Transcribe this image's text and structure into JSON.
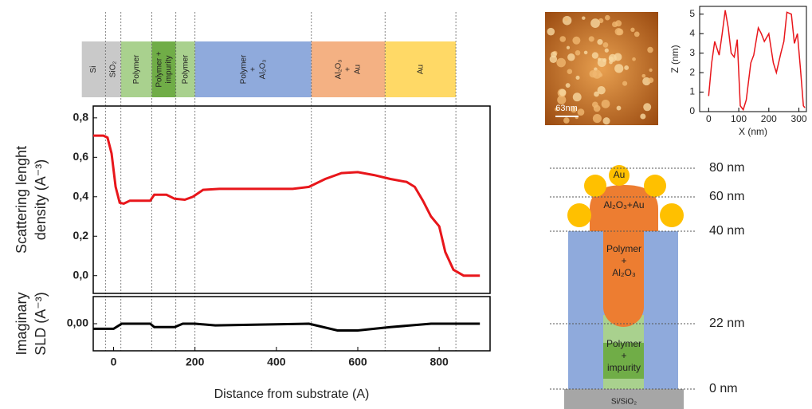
{
  "chart_data": [
    {
      "type": "line",
      "xlim": [
        -50,
        925
      ],
      "ylim": [
        -0.09,
        0.86
      ],
      "yticks": [
        {
          "value": 0,
          "label": "0,0"
        },
        {
          "value": 0.2,
          "label": "0,2"
        },
        {
          "value": 0.4,
          "label": "0,4"
        },
        {
          "value": 0.6,
          "label": "0,6"
        },
        {
          "value": 0.8,
          "label": "0,8"
        }
      ],
      "ylabel": [
        "Scattering lenght",
        "density  (A⁻³)"
      ],
      "layers": [
        {
          "lines": [
            "Si"
          ],
          "from": -78,
          "to": -20,
          "color": "#c9c9c9"
        },
        {
          "lines": [
            "SiO₂"
          ],
          "from": -20,
          "to": 18,
          "color": "#c9c9c9"
        },
        {
          "lines": [
            "Polymer"
          ],
          "from": 18,
          "to": 94,
          "color": "#a9d18e"
        },
        {
          "lines": [
            "Polymer +",
            "impurity"
          ],
          "from": 94,
          "to": 153,
          "color": "#70ad47"
        },
        {
          "lines": [
            "Polymer"
          ],
          "from": 153,
          "to": 200,
          "color": "#a9d18e"
        },
        {
          "lines": [
            "Polymer",
            "+",
            "Al₂O₃"
          ],
          "from": 200,
          "to": 486,
          "color": "#8faadc"
        },
        {
          "lines": [
            "Al₂O₃",
            "+",
            "Au"
          ],
          "from": 486,
          "to": 667,
          "color": "#f4b183"
        },
        {
          "lines": [
            "Au"
          ],
          "from": 667,
          "to": 841,
          "color": "#ffd966"
        }
      ],
      "series": [
        {
          "color": "#e8161b",
          "x": [
            -50,
            -25,
            -15,
            -5,
            5,
            15,
            25,
            40,
            90,
            100,
            130,
            150,
            175,
            195,
            220,
            260,
            350,
            440,
            480,
            520,
            560,
            600,
            640,
            680,
            720,
            740,
            760,
            780,
            800,
            815,
            835,
            860,
            900
          ],
          "values": [
            0.71,
            0.71,
            0.7,
            0.62,
            0.45,
            0.37,
            0.365,
            0.38,
            0.38,
            0.41,
            0.41,
            0.39,
            0.385,
            0.4,
            0.435,
            0.44,
            0.44,
            0.44,
            0.45,
            0.49,
            0.52,
            0.525,
            0.51,
            0.49,
            0.475,
            0.45,
            0.38,
            0.3,
            0.25,
            0.12,
            0.03,
            0.0,
            0.0
          ]
        }
      ]
    },
    {
      "type": "line",
      "xlim": [
        -50,
        925
      ],
      "ylim": [
        -0.08,
        0.08
      ],
      "xticks": [
        0,
        200,
        400,
        600,
        800
      ],
      "yticks": [
        {
          "value": 0,
          "label": "0,00"
        }
      ],
      "xlabel": "Distance from substrate (A)",
      "ylabel": [
        "Imaginary",
        "SLD  (A⁻³)"
      ],
      "series": [
        {
          "color": "#000000",
          "x": [
            -50,
            0,
            20,
            90,
            100,
            150,
            170,
            200,
            250,
            480,
            550,
            600,
            680,
            780,
            820,
            900
          ],
          "values": [
            -0.015,
            -0.015,
            0,
            0,
            -0.01,
            -0.01,
            0,
            0,
            -0.005,
            0,
            -0.02,
            -0.02,
            -0.01,
            0,
            0,
            0
          ]
        }
      ]
    },
    {
      "type": "line",
      "xlim": [
        -30,
        325
      ],
      "ylim": [
        0,
        5.4
      ],
      "xticks": [
        0,
        100,
        200,
        300
      ],
      "yticks": [
        0,
        1,
        2,
        3,
        4,
        5
      ],
      "xlabel": "X (nm)",
      "ylabel": [
        "Z (nm)"
      ],
      "series": [
        {
          "color": "#e8161b",
          "x": [
            0,
            10,
            20,
            35,
            45,
            55,
            65,
            75,
            85,
            95,
            105,
            115,
            125,
            140,
            150,
            165,
            175,
            185,
            200,
            215,
            225,
            240,
            250,
            260,
            275,
            285,
            295,
            305,
            315,
            320
          ],
          "values": [
            0.8,
            2.5,
            3.6,
            2.9,
            4,
            5.2,
            4.3,
            3,
            2.8,
            3.7,
            0.3,
            0.1,
            0.6,
            2.5,
            2.9,
            4.3,
            4,
            3.6,
            4,
            2.5,
            2,
            3,
            3.6,
            5.1,
            5,
            3.5,
            4,
            2.2,
            0.3,
            0.2
          ]
        }
      ]
    }
  ],
  "afm_image": {
    "scale_label": "63nm"
  },
  "schematic": {
    "levels": [
      "80 nm",
      "60 nm",
      "40 nm",
      "22 nm",
      "0 nm"
    ],
    "au": "Au",
    "cap": "Al₂O₃+Au",
    "core": [
      "Polymer",
      "+",
      "Al₂O₃"
    ],
    "base": [
      "Polymer",
      "+",
      "impurity"
    ],
    "substrate": "Si/SiO₂"
  }
}
